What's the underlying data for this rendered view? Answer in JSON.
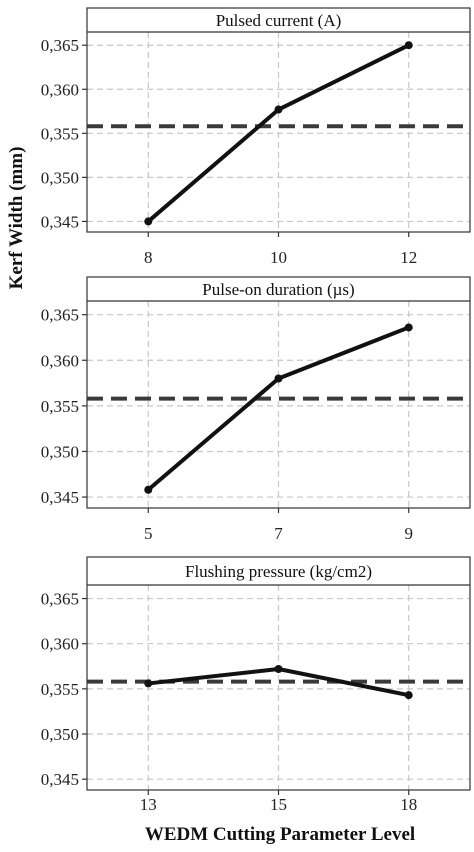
{
  "figure": {
    "ylabel": "Kerf Width (mm)",
    "xlabel": "WEDM Cutting Parameter Level"
  },
  "chart_data": [
    {
      "type": "line",
      "title": "Pulsed current (A)",
      "categories": [
        "8",
        "10",
        "12"
      ],
      "values": [
        0.345,
        0.3577,
        0.365
      ],
      "mean_line": 0.3558,
      "ylim": [
        0.3438,
        0.3665
      ],
      "yticks": [
        0.345,
        0.35,
        0.355,
        0.36,
        0.365
      ],
      "ytick_labels": [
        "0,345",
        "0,350",
        "0,355",
        "0,360",
        "0,365"
      ],
      "grid": true
    },
    {
      "type": "line",
      "title": "Pulse-on duration (µs)",
      "categories": [
        "5",
        "7",
        "9"
      ],
      "values": [
        0.3458,
        0.358,
        0.3636
      ],
      "mean_line": 0.3558,
      "ylim": [
        0.3438,
        0.3665
      ],
      "yticks": [
        0.345,
        0.35,
        0.355,
        0.36,
        0.365
      ],
      "ytick_labels": [
        "0,345",
        "0,350",
        "0,355",
        "0,360",
        "0,365"
      ],
      "grid": true
    },
    {
      "type": "line",
      "title": "Flushing pressure (kg/cm2)",
      "categories": [
        "13",
        "15",
        "18"
      ],
      "values": [
        0.3556,
        0.3572,
        0.3543
      ],
      "mean_line": 0.3558,
      "ylim": [
        0.3438,
        0.3665
      ],
      "yticks": [
        0.345,
        0.35,
        0.355,
        0.36,
        0.365
      ],
      "ytick_labels": [
        "0,345",
        "0,350",
        "0,355",
        "0,360",
        "0,365"
      ],
      "grid": true
    }
  ],
  "colors": {
    "line": "#111111",
    "mean": "#3a3a3a",
    "grid": "#c8c8c8",
    "frame": "#333333"
  }
}
